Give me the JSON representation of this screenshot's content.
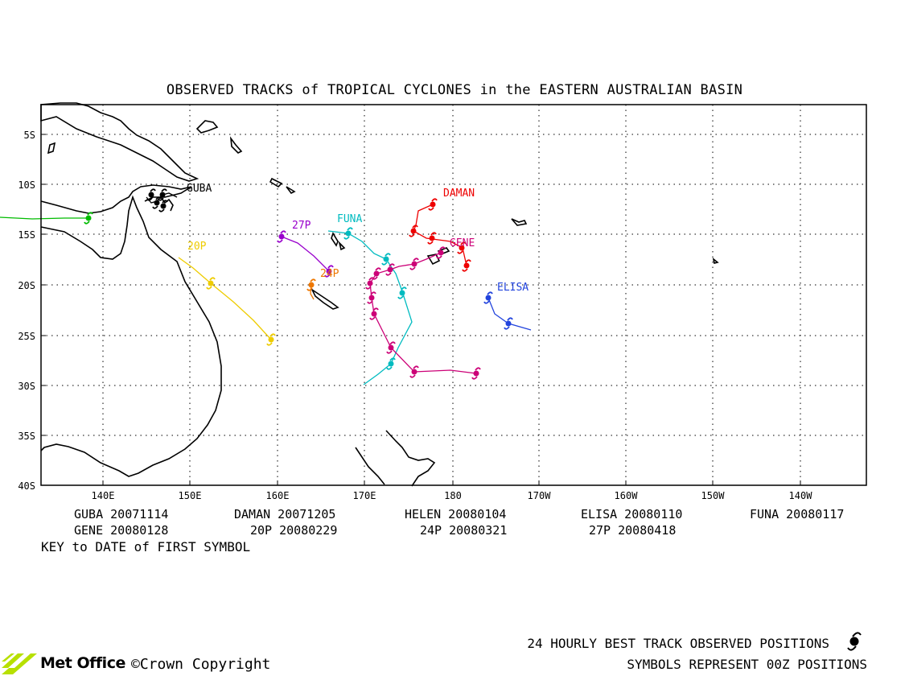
{
  "title": "OBSERVED TRACKS of TROPICAL CYCLONES in the EASTERN AUSTRALIAN BASIN",
  "lat_labels": [
    "5S",
    "10S",
    "15S",
    "20S",
    "25S",
    "30S",
    "35S",
    "40S"
  ],
  "lon_labels": [
    "140E",
    "150E",
    "160E",
    "170E",
    "180",
    "170W",
    "160W",
    "150W",
    "140W"
  ],
  "storms": [
    {
      "name": "GUBA",
      "label": "GUBA",
      "date": "20071114",
      "color": "#000000"
    },
    {
      "name": "DAMAN",
      "label": "DAMAN",
      "date": "20071205",
      "color": "#ee0000"
    },
    {
      "name": "HELEN",
      "label": "",
      "date": "20080104",
      "color": "#00bb00"
    },
    {
      "name": "ELISA",
      "label": "ELISA",
      "date": "20080110",
      "color": "#2244dd"
    },
    {
      "name": "FUNA",
      "label": "FUNA",
      "date": "20080117",
      "color": "#00bbc0"
    },
    {
      "name": "GENE",
      "label": "GENE",
      "date": "20080128",
      "color": "#cc0077"
    },
    {
      "name": "20P",
      "label": "20P",
      "date": "20080229",
      "color": "#eecc00"
    },
    {
      "name": "24P",
      "label": "24P",
      "date": "20080321",
      "color": "#ee7700"
    },
    {
      "name": "27P",
      "label": "27P",
      "date": "20080418",
      "color": "#9900cc"
    }
  ],
  "key_note": "KEY to DATE of FIRST SYMBOL",
  "footer": {
    "line1": "24 HOURLY BEST TRACK OBSERVED POSITIONS",
    "line2": "SYMBOLS REPRESENT 00Z POSITIONS"
  },
  "logo": "Met Office",
  "copyright": "©Crown Copyright",
  "map_icon": "cyclone-symbol-icon"
}
